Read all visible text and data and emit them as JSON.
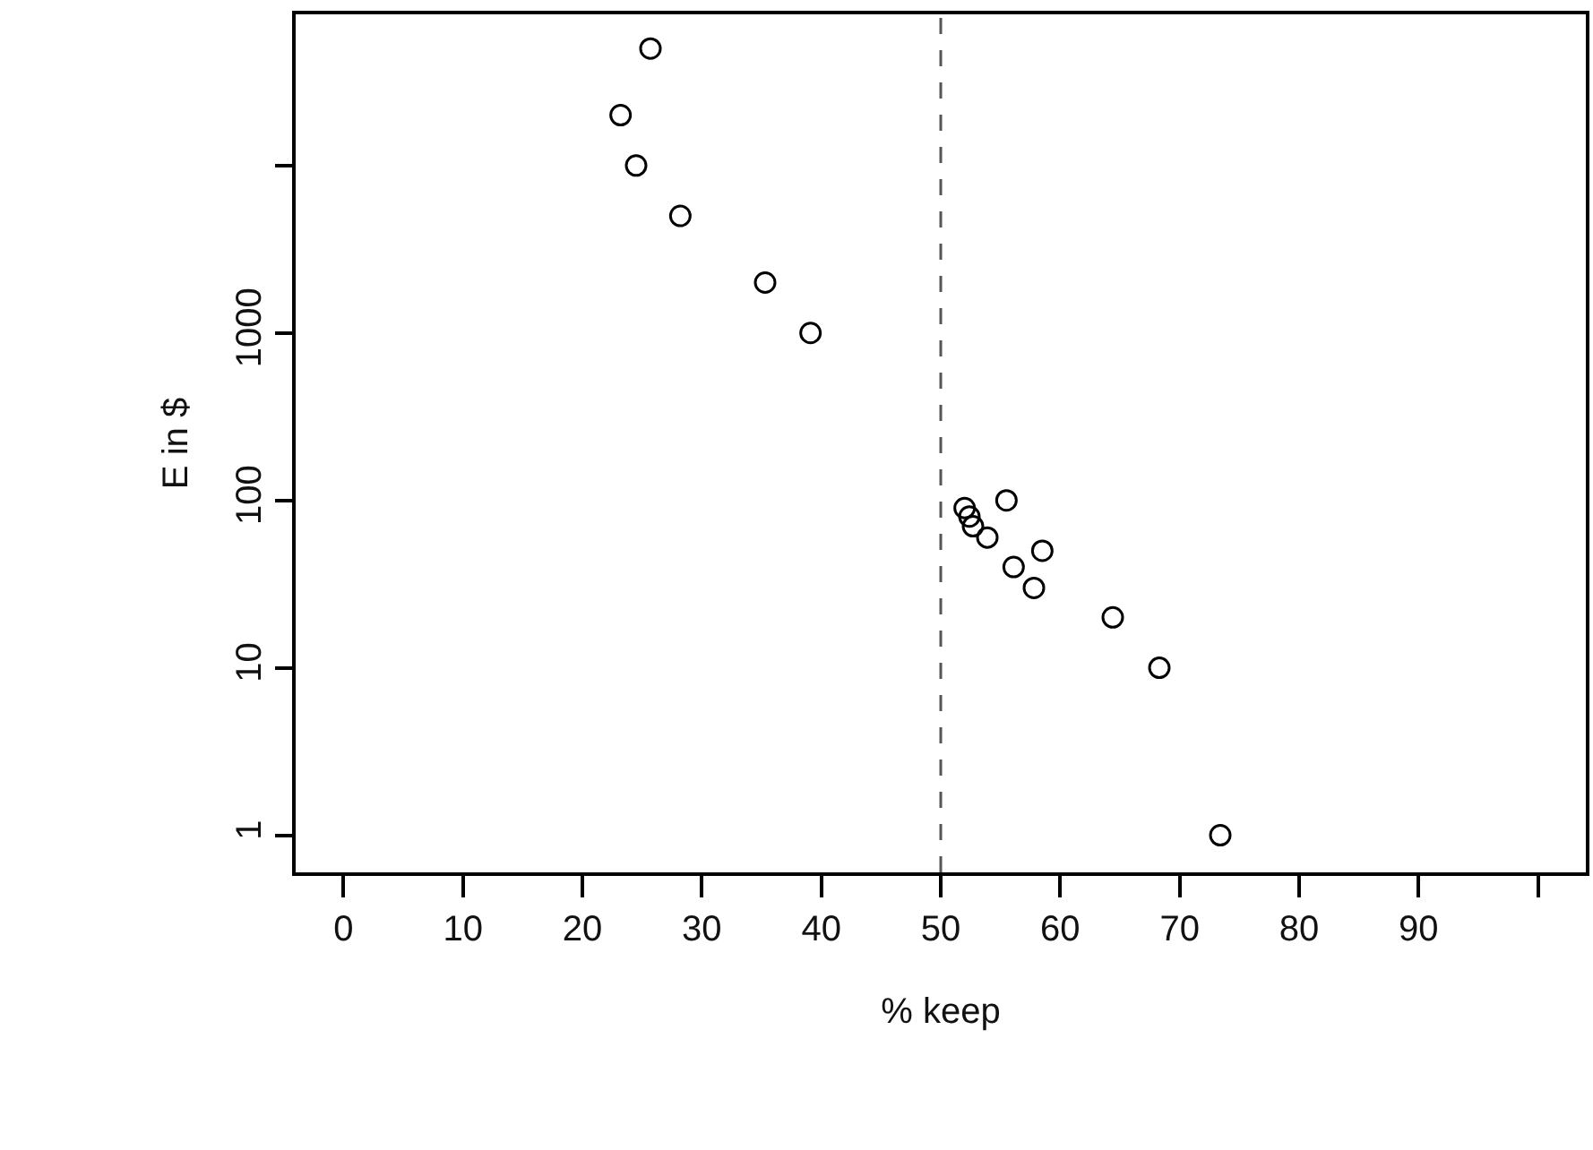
{
  "chart_data": {
    "type": "scatter",
    "xlabel": "% keep",
    "ylabel": "E in $",
    "log": "y",
    "marker": "circle",
    "series": [
      {
        "color": "#000000",
        "x": [
          25.7,
          23.2,
          24.5,
          28.2,
          35.3,
          39.1,
          52.0,
          52.4,
          52.7,
          53.9,
          55.5,
          58.5,
          56.1,
          57.8,
          64.4,
          68.3,
          73.4
        ],
        "values": [
          50000,
          20000,
          10000,
          5000,
          2000,
          1000,
          90,
          80,
          70,
          60,
          100,
          50,
          40,
          30,
          20,
          10,
          1
        ]
      }
    ],
    "xlim": [
      -4,
      104
    ],
    "xticks": [
      0,
      10,
      20,
      30,
      40,
      50,
      60,
      70,
      80,
      90,
      {
        "value": 100,
        "label": null
      }
    ],
    "ylim": [
      0.6,
      80000
    ],
    "yticks": [
      1,
      10,
      100,
      1000,
      {
        "value": 10000,
        "label": null
      }
    ],
    "ref_lines": [
      {
        "axis": "x",
        "value": 50,
        "line_style": "dashed",
        "color": "#555555"
      }
    ]
  }
}
